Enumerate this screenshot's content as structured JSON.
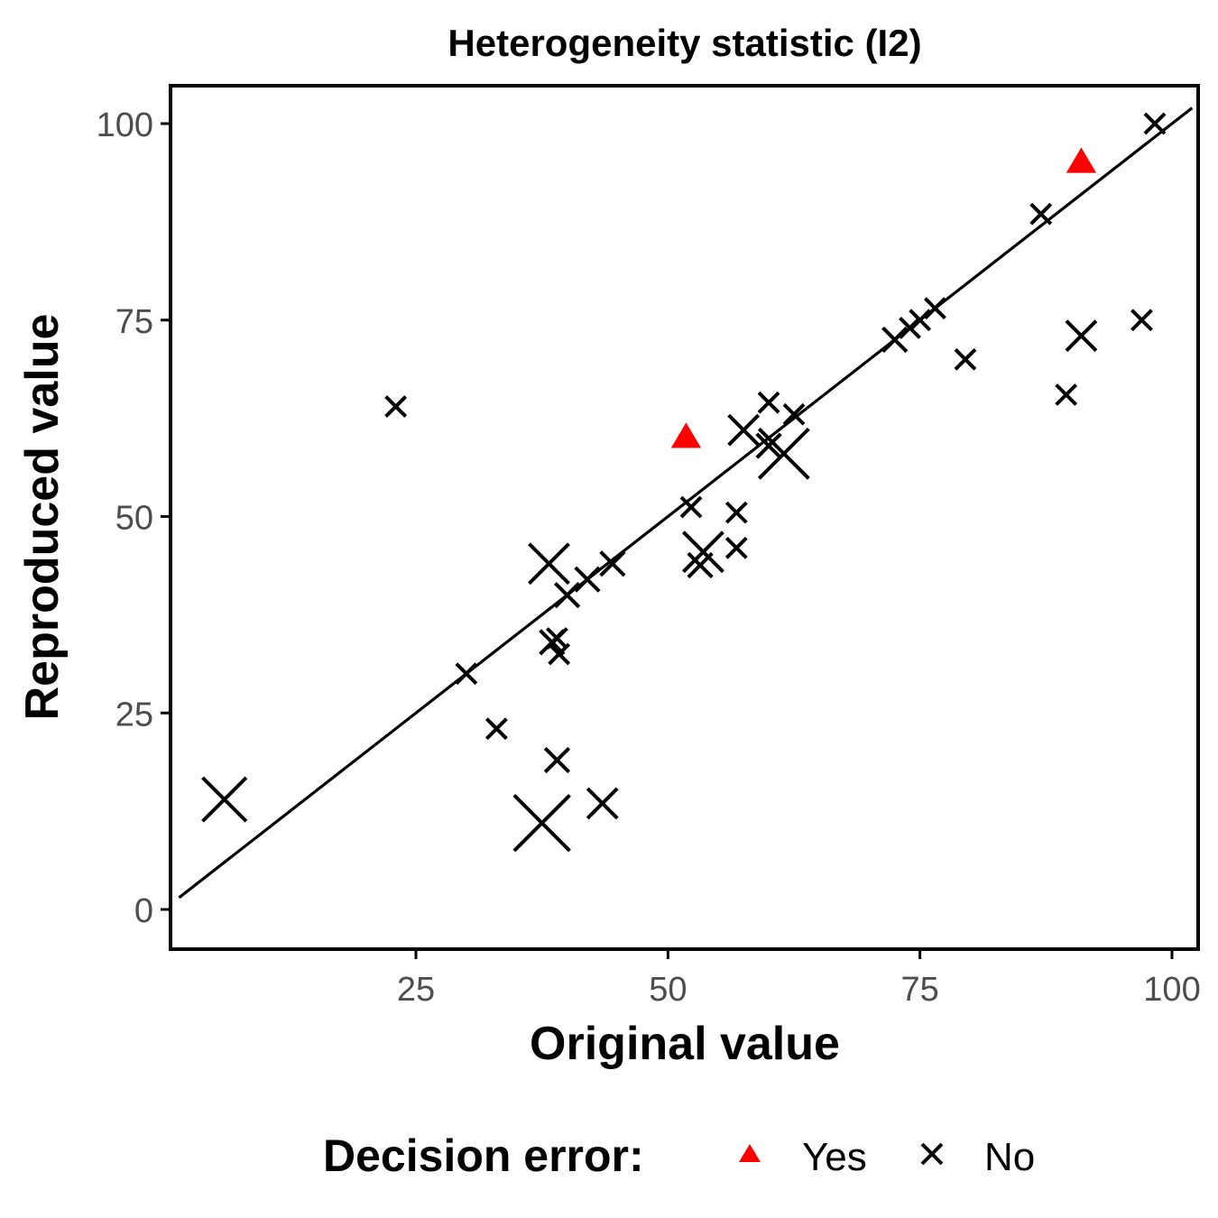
{
  "chart_data": {
    "type": "scatter",
    "title": "Heterogeneity statistic (I2)",
    "xlabel": "Original value",
    "ylabel": "Reproduced value",
    "xlim": [
      1.5,
      102
    ],
    "ylim": [
      -5,
      105
    ],
    "xticks": [
      25,
      50,
      75,
      100
    ],
    "yticks": [
      0,
      25,
      50,
      75,
      100
    ],
    "grid": false,
    "reference_line": {
      "from": [
        0,
        0
      ],
      "to": [
        102,
        102
      ]
    },
    "legend": {
      "title": "Decision error:",
      "placement": "bottom",
      "entries": [
        {
          "label": "Yes",
          "shape": "triangle",
          "color": "#ff0000"
        },
        {
          "label": "No",
          "shape": "cross",
          "color": "#000000"
        }
      ]
    },
    "series": [
      {
        "name": "Yes",
        "marker": "triangle",
        "color": "#ff0000",
        "points": [
          {
            "x": 51.8,
            "y": 60,
            "size": 1
          },
          {
            "x": 91,
            "y": 95,
            "size": 1
          }
        ]
      },
      {
        "name": "No",
        "marker": "cross",
        "color": "#000000",
        "points": [
          {
            "x": 98.3,
            "y": 100,
            "size": 1
          },
          {
            "x": 87,
            "y": 88.5,
            "size": 1
          },
          {
            "x": 97,
            "y": 75,
            "size": 1
          },
          {
            "x": 91,
            "y": 73,
            "size": 1.5
          },
          {
            "x": 89.5,
            "y": 65.5,
            "size": 1
          },
          {
            "x": 79.5,
            "y": 70,
            "size": 1
          },
          {
            "x": 76.5,
            "y": 76.5,
            "size": 1
          },
          {
            "x": 75,
            "y": 75,
            "size": 1
          },
          {
            "x": 74,
            "y": 74,
            "size": 1
          },
          {
            "x": 72.5,
            "y": 72.5,
            "size": 1.2
          },
          {
            "x": 62.5,
            "y": 63,
            "size": 1
          },
          {
            "x": 60,
            "y": 64.5,
            "size": 1
          },
          {
            "x": 61.5,
            "y": 58,
            "size": 2.5
          },
          {
            "x": 60,
            "y": 59,
            "size": 1.2
          },
          {
            "x": 57.5,
            "y": 61,
            "size": 1.5
          },
          {
            "x": 56.8,
            "y": 50.5,
            "size": 1
          },
          {
            "x": 56.8,
            "y": 46,
            "size": 1
          },
          {
            "x": 53.5,
            "y": 45.5,
            "size": 2
          },
          {
            "x": 53.2,
            "y": 43.8,
            "size": 1.2
          },
          {
            "x": 52.3,
            "y": 51.2,
            "size": 1
          },
          {
            "x": 44.5,
            "y": 44,
            "size": 1.2
          },
          {
            "x": 43.5,
            "y": 13.5,
            "size": 1.5
          },
          {
            "x": 42,
            "y": 42,
            "size": 1.2
          },
          {
            "x": 40,
            "y": 40,
            "size": 1.2
          },
          {
            "x": 38.2,
            "y": 44,
            "size": 2
          },
          {
            "x": 39,
            "y": 34.5,
            "size": 1
          },
          {
            "x": 39.2,
            "y": 32.5,
            "size": 1
          },
          {
            "x": 38.5,
            "y": 34,
            "size": 1.2
          },
          {
            "x": 39,
            "y": 19,
            "size": 1.2
          },
          {
            "x": 37.5,
            "y": 11,
            "size": 2.8
          },
          {
            "x": 33,
            "y": 23,
            "size": 1
          },
          {
            "x": 30,
            "y": 30,
            "size": 1
          },
          {
            "x": 23,
            "y": 64,
            "size": 1
          },
          {
            "x": 6,
            "y": 14,
            "size": 2.2
          }
        ]
      }
    ]
  }
}
